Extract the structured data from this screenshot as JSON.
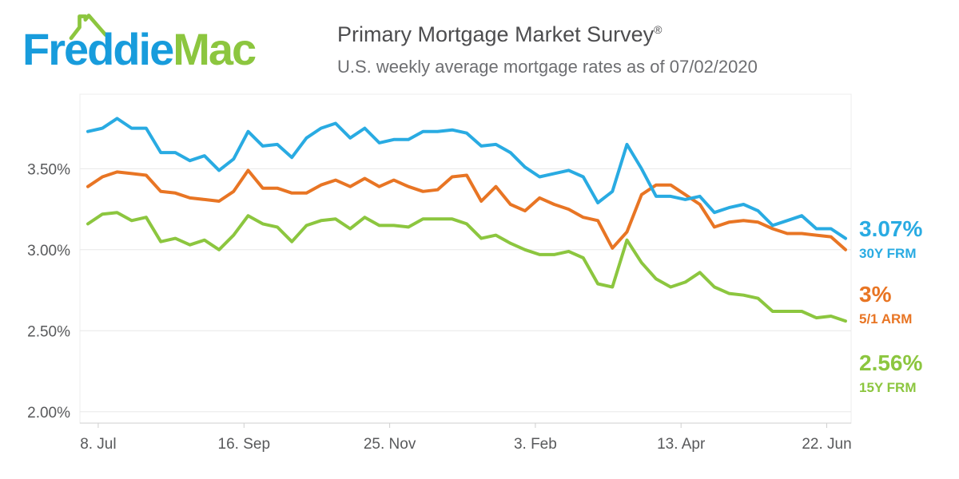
{
  "header": {
    "logo_part1": "Freddie",
    "logo_part2": "Mac",
    "title": "Primary Mortgage Market Survey",
    "title_mark": "®",
    "subtitle": "U.S. weekly average mortgage rates as of 07/02/2020"
  },
  "colors": {
    "logo_blue": "#189cdc",
    "logo_green": "#8cc63f",
    "line_30y": "#29ABE2",
    "line_51arm": "#E87524",
    "line_15y": "#8CC63F",
    "gridline": "#e8e8e8",
    "axis": "#cfcfcf",
    "tick_text": "#58595B"
  },
  "chart_data": {
    "type": "line",
    "title": "Primary Mortgage Market Survey",
    "subtitle": "U.S. weekly average mortgage rates as of 07/02/2020",
    "as_of_date": "07/02/2020",
    "x_unit": "week",
    "x_tick_labels": [
      "8. Jul",
      "16. Sep",
      "25. Nov",
      "3. Feb",
      "13. Apr",
      "22. Jun"
    ],
    "x_tick_indices": [
      0.71,
      10.71,
      20.71,
      30.71,
      40.71,
      50.71
    ],
    "y_ticks": [
      3.5,
      3.0,
      2.5,
      2.0
    ],
    "y_tick_labels": [
      "3.50%",
      "3.00%",
      "2.50%",
      "2.00%"
    ],
    "ylim": [
      1.93,
      3.96
    ],
    "grid": true,
    "legend_position": "right-outside",
    "dates": [
      "2019-07-03",
      "2019-07-11",
      "2019-07-18",
      "2019-07-25",
      "2019-08-01",
      "2019-08-08",
      "2019-08-15",
      "2019-08-22",
      "2019-08-29",
      "2019-09-05",
      "2019-09-12",
      "2019-09-19",
      "2019-09-26",
      "2019-10-03",
      "2019-10-10",
      "2019-10-17",
      "2019-10-24",
      "2019-10-31",
      "2019-11-07",
      "2019-11-14",
      "2019-11-21",
      "2019-11-27",
      "2019-12-05",
      "2019-12-12",
      "2019-12-19",
      "2019-12-26",
      "2020-01-02",
      "2020-01-09",
      "2020-01-16",
      "2020-01-23",
      "2020-01-30",
      "2020-02-06",
      "2020-02-13",
      "2020-02-20",
      "2020-02-27",
      "2020-03-05",
      "2020-03-12",
      "2020-03-19",
      "2020-03-26",
      "2020-04-02",
      "2020-04-09",
      "2020-04-16",
      "2020-04-23",
      "2020-04-30",
      "2020-05-07",
      "2020-05-14",
      "2020-05-21",
      "2020-05-28",
      "2020-06-04",
      "2020-06-11",
      "2020-06-18",
      "2020-06-25",
      "2020-07-02"
    ],
    "series": [
      {
        "name": "30Y FRM",
        "final_label": "3.07%",
        "color": "#29ABE2",
        "values": [
          3.73,
          3.75,
          3.81,
          3.75,
          3.75,
          3.6,
          3.6,
          3.55,
          3.58,
          3.49,
          3.56,
          3.73,
          3.64,
          3.65,
          3.57,
          3.69,
          3.75,
          3.78,
          3.69,
          3.75,
          3.66,
          3.68,
          3.68,
          3.73,
          3.73,
          3.74,
          3.72,
          3.64,
          3.65,
          3.6,
          3.51,
          3.45,
          3.47,
          3.49,
          3.45,
          3.29,
          3.36,
          3.65,
          3.5,
          3.33,
          3.33,
          3.31,
          3.33,
          3.23,
          3.26,
          3.28,
          3.24,
          3.15,
          3.18,
          3.21,
          3.13,
          3.13,
          3.07
        ]
      },
      {
        "name": "5/1 ARM",
        "final_label": "3%",
        "color": "#E87524",
        "values": [
          3.39,
          3.45,
          3.48,
          3.47,
          3.46,
          3.36,
          3.35,
          3.32,
          3.31,
          3.3,
          3.36,
          3.49,
          3.38,
          3.38,
          3.35,
          3.35,
          3.4,
          3.43,
          3.39,
          3.44,
          3.39,
          3.43,
          3.39,
          3.36,
          3.37,
          3.45,
          3.46,
          3.3,
          3.39,
          3.28,
          3.24,
          3.32,
          3.28,
          3.25,
          3.2,
          3.18,
          3.01,
          3.11,
          3.34,
          3.4,
          3.4,
          3.34,
          3.28,
          3.14,
          3.17,
          3.18,
          3.17,
          3.13,
          3.1,
          3.1,
          3.09,
          3.08,
          3.0
        ]
      },
      {
        "name": "15Y FRM",
        "final_label": "2.56%",
        "color": "#8CC63F",
        "values": [
          3.16,
          3.22,
          3.23,
          3.18,
          3.2,
          3.05,
          3.07,
          3.03,
          3.06,
          3.0,
          3.09,
          3.21,
          3.16,
          3.14,
          3.05,
          3.15,
          3.18,
          3.19,
          3.13,
          3.2,
          3.15,
          3.15,
          3.14,
          3.19,
          3.19,
          3.19,
          3.16,
          3.07,
          3.09,
          3.04,
          3.0,
          2.97,
          2.97,
          2.99,
          2.95,
          2.79,
          2.77,
          3.06,
          2.92,
          2.82,
          2.77,
          2.8,
          2.86,
          2.77,
          2.73,
          2.72,
          2.7,
          2.62,
          2.62,
          2.62,
          2.58,
          2.59,
          2.56
        ]
      }
    ]
  }
}
